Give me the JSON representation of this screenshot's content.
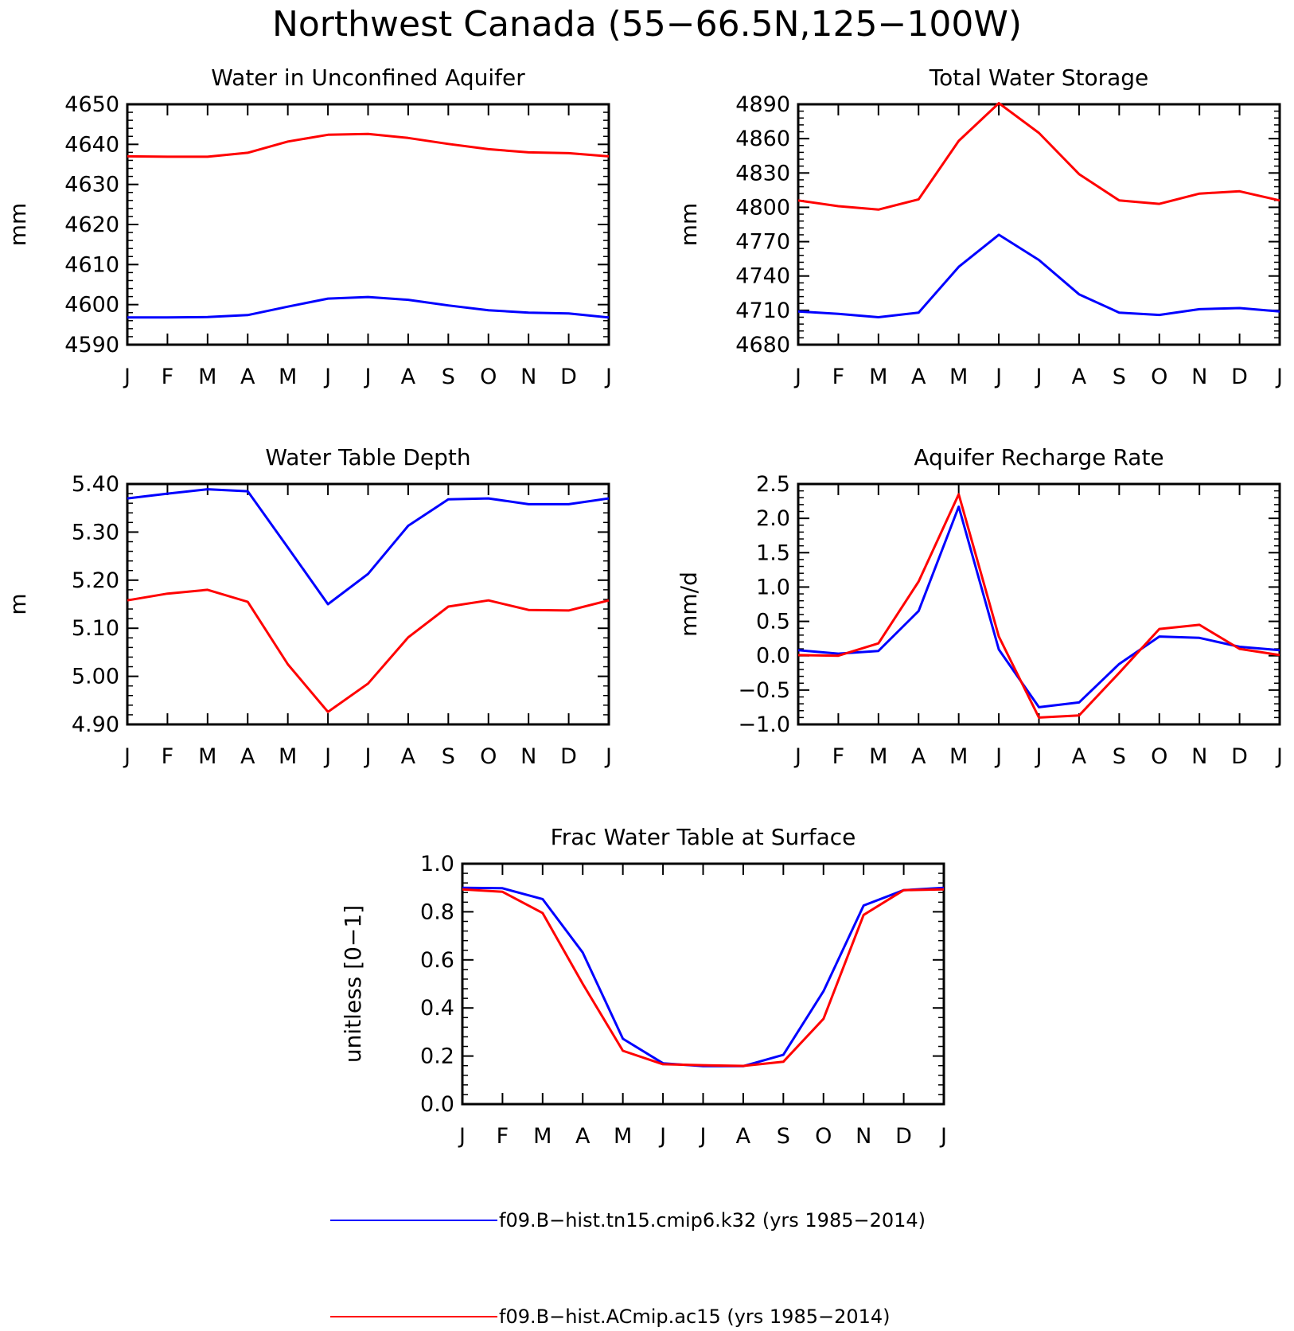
{
  "title": "Northwest Canada (55−66.5N,125−100W)",
  "colors": {
    "blue": "#0000ff",
    "red": "#ff0000"
  },
  "legend": [
    {
      "label": "f09.B−hist.tn15.cmip6.k32 (yrs 1985−2014)",
      "color": "#0000ff"
    },
    {
      "label": "f09.B−hist.ACmip.ac15 (yrs 1985−2014)",
      "color": "#ff0000"
    }
  ],
  "chart_data": [
    {
      "type": "line",
      "title": "Water in Unconfined Aquifer",
      "ylabel": "mm",
      "ylim": [
        4590,
        4650
      ],
      "yticks": [
        "4590",
        "4600",
        "4610",
        "4620",
        "4630",
        "4640",
        "4650"
      ],
      "categories": [
        "J",
        "F",
        "M",
        "A",
        "M",
        "J",
        "J",
        "A",
        "S",
        "O",
        "N",
        "D",
        "J"
      ],
      "series": [
        {
          "name": "f09.B−hist.tn15.cmip6.k32 (yrs 1985−2014)",
          "color": "#0000ff",
          "values": [
            4596.8,
            4596.8,
            4596.9,
            4597.4,
            4599.5,
            4601.5,
            4601.9,
            4601.2,
            4599.8,
            4598.6,
            4598.0,
            4597.8,
            4596.8
          ]
        },
        {
          "name": "f09.B−hist.ACmip.ac15 (yrs 1985−2014)",
          "color": "#ff0000",
          "values": [
            4637.0,
            4636.9,
            4636.9,
            4637.9,
            4640.7,
            4642.4,
            4642.6,
            4641.6,
            4640.1,
            4638.8,
            4638.0,
            4637.8,
            4637.0
          ]
        }
      ]
    },
    {
      "type": "line",
      "title": "Total Water Storage",
      "ylabel": "mm",
      "ylim": [
        4680,
        4890
      ],
      "yticks": [
        "4680",
        "4710",
        "4740",
        "4770",
        "4800",
        "4830",
        "4860",
        "4890"
      ],
      "categories": [
        "J",
        "F",
        "M",
        "A",
        "M",
        "J",
        "J",
        "A",
        "S",
        "O",
        "N",
        "D",
        "J"
      ],
      "series": [
        {
          "name": "f09.B−hist.tn15.cmip6.k32 (yrs 1985−2014)",
          "color": "#0000ff",
          "values": [
            4709,
            4707,
            4704,
            4708,
            4748,
            4776,
            4754,
            4724,
            4708,
            4706,
            4711,
            4712,
            4709
          ]
        },
        {
          "name": "f09.B−hist.ACmip.ac15 (yrs 1985−2014)",
          "color": "#ff0000",
          "values": [
            4806,
            4801,
            4798,
            4807,
            4858,
            4891,
            4865,
            4829,
            4806,
            4803,
            4812,
            4814,
            4806
          ]
        }
      ]
    },
    {
      "type": "line",
      "title": "Water Table Depth",
      "ylabel": "m",
      "ylim": [
        4.9,
        5.4
      ],
      "yticks": [
        "4.90",
        "5.00",
        "5.10",
        "5.20",
        "5.30",
        "5.40"
      ],
      "categories": [
        "J",
        "F",
        "M",
        "A",
        "M",
        "J",
        "J",
        "A",
        "S",
        "O",
        "N",
        "D",
        "J"
      ],
      "series": [
        {
          "name": "f09.B−hist.tn15.cmip6.k32 (yrs 1985−2014)",
          "color": "#0000ff",
          "values": [
            5.37,
            5.38,
            5.389,
            5.385,
            5.268,
            5.15,
            5.213,
            5.313,
            5.368,
            5.37,
            5.358,
            5.358,
            5.37
          ]
        },
        {
          "name": "f09.B−hist.ACmip.ac15 (yrs 1985−2014)",
          "color": "#ff0000",
          "values": [
            5.158,
            5.172,
            5.18,
            5.155,
            5.025,
            4.926,
            4.985,
            5.081,
            5.145,
            5.158,
            5.138,
            5.137,
            5.158
          ]
        }
      ]
    },
    {
      "type": "line",
      "title": "Aquifer Recharge Rate",
      "ylabel": "mm/d",
      "ylim": [
        -1.0,
        2.5
      ],
      "yticks": [
        "−1.0",
        "−0.5",
        "0.0",
        "0.5",
        "1.0",
        "1.5",
        "2.0",
        "2.5"
      ],
      "categories": [
        "J",
        "F",
        "M",
        "A",
        "M",
        "J",
        "J",
        "A",
        "S",
        "O",
        "N",
        "D",
        "J"
      ],
      "series": [
        {
          "name": "f09.B−hist.tn15.cmip6.k32 (yrs 1985−2014)",
          "color": "#0000ff",
          "values": [
            0.08,
            0.03,
            0.07,
            0.65,
            2.17,
            0.09,
            -0.75,
            -0.68,
            -0.12,
            0.28,
            0.26,
            0.13,
            0.08
          ]
        },
        {
          "name": "f09.B−hist.ACmip.ac15 (yrs 1985−2014)",
          "color": "#ff0000",
          "values": [
            0.01,
            0.0,
            0.18,
            1.08,
            2.35,
            0.28,
            -0.9,
            -0.87,
            -0.25,
            0.39,
            0.45,
            0.1,
            0.01
          ]
        }
      ]
    },
    {
      "type": "line",
      "title": "Frac Water Table at Surface",
      "ylabel": "unitless [0−1]",
      "ylim": [
        0.0,
        1.0
      ],
      "yticks": [
        "0.0",
        "0.2",
        "0.4",
        "0.6",
        "0.8",
        "1.0"
      ],
      "categories": [
        "J",
        "F",
        "M",
        "A",
        "M",
        "J",
        "J",
        "A",
        "S",
        "O",
        "N",
        "D",
        "J"
      ],
      "series": [
        {
          "name": "f09.B−hist.tn15.cmip6.k32 (yrs 1985−2014)",
          "color": "#0000ff",
          "values": [
            0.9,
            0.898,
            0.853,
            0.63,
            0.272,
            0.17,
            0.158,
            0.158,
            0.205,
            0.47,
            0.826,
            0.89,
            0.9
          ]
        },
        {
          "name": "f09.B−hist.ACmip.ac15 (yrs 1985−2014)",
          "color": "#ff0000",
          "values": [
            0.893,
            0.883,
            0.795,
            0.5,
            0.222,
            0.166,
            0.162,
            0.159,
            0.176,
            0.355,
            0.787,
            0.89,
            0.893
          ]
        }
      ]
    }
  ]
}
